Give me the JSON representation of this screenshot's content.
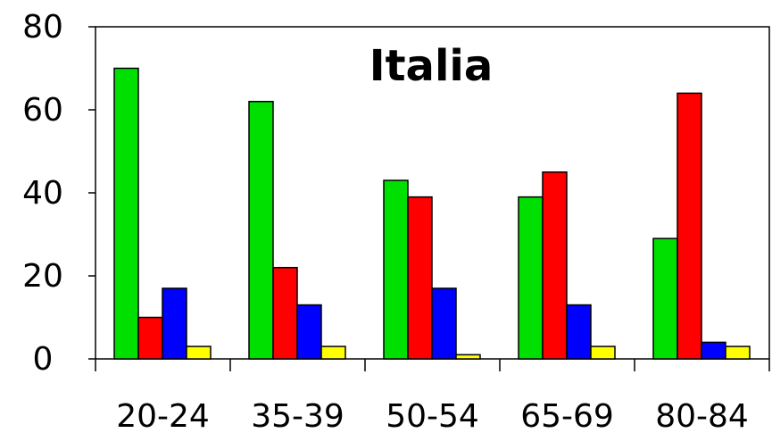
{
  "chart_data": {
    "type": "bar",
    "title": "Italia",
    "categories": [
      "20-24",
      "35-39",
      "50-54",
      "65-69",
      "80-84"
    ],
    "series": [
      {
        "color": "#00e000",
        "values": [
          70,
          62,
          43,
          39,
          29
        ]
      },
      {
        "color": "#ff0000",
        "values": [
          10,
          22,
          39,
          45,
          64
        ]
      },
      {
        "color": "#0000ff",
        "values": [
          17,
          13,
          17,
          13,
          4
        ]
      },
      {
        "color": "#ffff00",
        "values": [
          3,
          3,
          1,
          3,
          3
        ]
      }
    ],
    "ylim": [
      0,
      80
    ],
    "yticks": [
      "0",
      "20",
      "40",
      "60",
      "80"
    ],
    "grid": false,
    "legend": "none"
  }
}
